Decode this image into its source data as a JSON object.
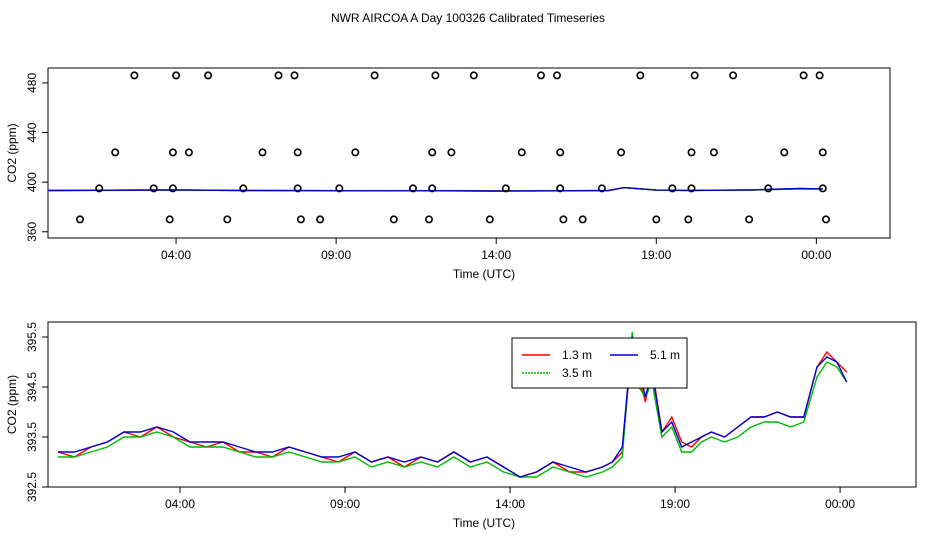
{
  "title": "NWR AIRCOA A  Day 100326  Calibrated Timeseries",
  "colors": {
    "red": "#ff0000",
    "green": "#00bb00",
    "blue": "#0000cc",
    "axis": "#000000",
    "background": "#ffffff"
  },
  "chart_data": [
    {
      "type": "scatter",
      "title": "",
      "xlabel": "Time (UTC)",
      "ylabel": "CO2 (ppm)",
      "xlim": [
        0,
        26.3
      ],
      "ylim": [
        355,
        492
      ],
      "xticks": [
        {
          "value": 4,
          "label": "04:00"
        },
        {
          "value": 9,
          "label": "09:00"
        },
        {
          "value": 14,
          "label": "14:00"
        },
        {
          "value": 19,
          "label": "19:00"
        },
        {
          "value": 24,
          "label": "00:00"
        }
      ],
      "yticks": [
        360,
        400,
        440,
        480
      ],
      "points": [
        [
          1.0,
          370
        ],
        [
          1.6,
          395
        ],
        [
          2.1,
          424
        ],
        [
          2.7,
          486
        ],
        [
          3.3,
          395
        ],
        [
          3.8,
          370
        ],
        [
          3.9,
          395
        ],
        [
          3.9,
          424
        ],
        [
          4.0,
          486
        ],
        [
          4.4,
          424
        ],
        [
          5.0,
          486
        ],
        [
          5.6,
          370
        ],
        [
          6.1,
          395
        ],
        [
          6.7,
          424
        ],
        [
          7.2,
          486
        ],
        [
          7.7,
          486
        ],
        [
          7.8,
          424
        ],
        [
          7.8,
          395
        ],
        [
          7.9,
          370
        ],
        [
          8.5,
          370
        ],
        [
          9.1,
          395
        ],
        [
          9.6,
          424
        ],
        [
          10.2,
          486
        ],
        [
          10.8,
          370
        ],
        [
          11.4,
          395
        ],
        [
          11.9,
          370
        ],
        [
          12.0,
          395
        ],
        [
          12.0,
          424
        ],
        [
          12.1,
          486
        ],
        [
          12.6,
          424
        ],
        [
          13.3,
          486
        ],
        [
          13.8,
          370
        ],
        [
          14.3,
          395
        ],
        [
          14.8,
          424
        ],
        [
          15.4,
          486
        ],
        [
          15.9,
          486
        ],
        [
          16.0,
          424
        ],
        [
          16.0,
          395
        ],
        [
          16.1,
          370
        ],
        [
          16.7,
          370
        ],
        [
          17.3,
          395
        ],
        [
          17.9,
          424
        ],
        [
          18.5,
          486
        ],
        [
          19.0,
          370
        ],
        [
          19.5,
          395
        ],
        [
          20.0,
          370
        ],
        [
          20.1,
          395
        ],
        [
          20.1,
          424
        ],
        [
          20.2,
          486
        ],
        [
          20.8,
          424
        ],
        [
          21.4,
          486
        ],
        [
          21.9,
          370
        ],
        [
          22.5,
          395
        ],
        [
          23.0,
          424
        ],
        [
          23.6,
          486
        ],
        [
          24.1,
          486
        ],
        [
          24.2,
          424
        ],
        [
          24.2,
          395
        ],
        [
          24.3,
          370
        ]
      ],
      "series": [
        {
          "name": "1.3 m",
          "color": "#ff0000",
          "x": [
            0,
            2,
            4,
            6,
            8,
            10,
            12,
            14,
            16,
            17.5,
            18,
            19,
            20,
            22,
            23.5,
            24.2
          ],
          "y": [
            393.3,
            393.5,
            393.8,
            393.3,
            393.2,
            393.0,
            393.1,
            392.9,
            393.0,
            393.3,
            395.5,
            393.6,
            393.4,
            393.8,
            394.8,
            394.6
          ]
        },
        {
          "name": "3.5 m",
          "color": "#00bb00",
          "x": [
            0,
            2,
            4,
            6,
            8,
            10,
            12,
            14,
            16,
            17.5,
            18,
            19,
            20,
            22,
            23.5,
            24.2
          ],
          "y": [
            393.2,
            393.4,
            393.7,
            393.3,
            393.1,
            393.0,
            393.0,
            392.8,
            393.0,
            393.2,
            395.6,
            393.5,
            393.3,
            393.7,
            394.6,
            394.5
          ]
        },
        {
          "name": "5.1 m",
          "color": "#0000cc",
          "x": [
            0,
            2,
            4,
            6,
            8,
            10,
            12,
            14,
            16,
            17.5,
            18,
            19,
            20,
            22,
            23.5,
            24.2
          ],
          "y": [
            393.3,
            393.5,
            393.8,
            393.4,
            393.2,
            393.0,
            393.1,
            392.9,
            393.0,
            393.3,
            395.6,
            393.6,
            393.4,
            393.8,
            394.9,
            394.6
          ]
        }
      ]
    },
    {
      "type": "line",
      "title": "",
      "xlabel": "Time (UTC)",
      "ylabel": "CO2 (ppm)",
      "xlim": [
        0,
        26.3
      ],
      "ylim": [
        392.5,
        395.8
      ],
      "xticks": [
        {
          "value": 4,
          "label": "04:00"
        },
        {
          "value": 9,
          "label": "09:00"
        },
        {
          "value": 14,
          "label": "14:00"
        },
        {
          "value": 19,
          "label": "19:00"
        },
        {
          "value": 24,
          "label": "00:00"
        }
      ],
      "yticks": [
        "392.5",
        "393.5",
        "394.5",
        "395.5"
      ],
      "legend_position": "top-center",
      "series": [
        {
          "name": "1.3 m",
          "color": "#ff0000",
          "x": [
            0.3,
            0.8,
            1.3,
            1.8,
            2.3,
            2.8,
            3.3,
            3.8,
            4.3,
            4.8,
            5.3,
            5.8,
            6.3,
            6.8,
            7.3,
            7.8,
            8.3,
            8.8,
            9.3,
            9.8,
            10.3,
            10.8,
            11.3,
            11.8,
            12.3,
            12.8,
            13.3,
            13.8,
            14.3,
            14.8,
            15.3,
            15.8,
            16.3,
            16.8,
            17.1,
            17.4,
            17.7,
            17.9,
            18.1,
            18.3,
            18.6,
            18.9,
            19.2,
            19.5,
            19.8,
            20.1,
            20.5,
            20.9,
            21.3,
            21.7,
            22.1,
            22.5,
            22.9,
            23.3,
            23.6,
            23.9,
            24.2
          ],
          "y": [
            393.2,
            393.1,
            393.3,
            393.4,
            393.6,
            393.5,
            393.7,
            393.5,
            393.4,
            393.3,
            393.4,
            393.2,
            393.2,
            393.1,
            393.3,
            393.2,
            393.1,
            393.0,
            393.2,
            393.0,
            393.1,
            392.9,
            393.1,
            393.0,
            393.2,
            393.0,
            393.1,
            392.9,
            392.7,
            392.8,
            393.0,
            392.8,
            392.8,
            392.9,
            393.0,
            393.2,
            395.4,
            394.7,
            394.2,
            394.9,
            393.6,
            393.9,
            393.4,
            393.3,
            393.5,
            393.6,
            393.5,
            393.7,
            393.9,
            393.9,
            394.0,
            393.9,
            393.9,
            394.9,
            395.2,
            395.0,
            394.8
          ]
        },
        {
          "name": "3.5 m",
          "color": "#00bb00",
          "x": [
            0.3,
            0.8,
            1.3,
            1.8,
            2.3,
            2.8,
            3.3,
            3.8,
            4.3,
            4.8,
            5.3,
            5.8,
            6.3,
            6.8,
            7.3,
            7.8,
            8.3,
            8.8,
            9.3,
            9.8,
            10.3,
            10.8,
            11.3,
            11.8,
            12.3,
            12.8,
            13.3,
            13.8,
            14.3,
            14.8,
            15.3,
            15.8,
            16.3,
            16.8,
            17.1,
            17.4,
            17.7,
            17.9,
            18.1,
            18.3,
            18.6,
            18.9,
            19.2,
            19.5,
            19.8,
            20.1,
            20.5,
            20.9,
            21.3,
            21.7,
            22.1,
            22.5,
            22.9,
            23.3,
            23.6,
            23.9,
            24.2
          ],
          "y": [
            393.1,
            393.1,
            393.2,
            393.3,
            393.5,
            393.5,
            393.6,
            393.5,
            393.3,
            393.3,
            393.3,
            393.2,
            393.1,
            393.1,
            393.2,
            393.1,
            393.0,
            393.0,
            393.1,
            392.9,
            393.0,
            392.9,
            393.0,
            392.9,
            393.1,
            392.9,
            393.0,
            392.8,
            392.7,
            392.7,
            392.9,
            392.8,
            392.7,
            392.8,
            392.9,
            393.1,
            395.6,
            394.5,
            394.3,
            394.6,
            393.5,
            393.7,
            393.2,
            393.2,
            393.4,
            393.5,
            393.4,
            393.5,
            393.7,
            393.8,
            393.8,
            393.7,
            393.8,
            394.7,
            395.0,
            394.9,
            394.6
          ]
        },
        {
          "name": "5.1 m",
          "color": "#0000cc",
          "x": [
            0.3,
            0.8,
            1.3,
            1.8,
            2.3,
            2.8,
            3.3,
            3.8,
            4.3,
            4.8,
            5.3,
            5.8,
            6.3,
            6.8,
            7.3,
            7.8,
            8.3,
            8.8,
            9.3,
            9.8,
            10.3,
            10.8,
            11.3,
            11.8,
            12.3,
            12.8,
            13.3,
            13.8,
            14.3,
            14.8,
            15.3,
            15.8,
            16.3,
            16.8,
            17.1,
            17.4,
            17.7,
            17.9,
            18.1,
            18.3,
            18.6,
            18.9,
            19.2,
            19.5,
            19.8,
            20.1,
            20.5,
            20.9,
            21.3,
            21.7,
            22.1,
            22.5,
            22.9,
            23.3,
            23.6,
            23.9,
            24.2
          ],
          "y": [
            393.2,
            393.2,
            393.3,
            393.4,
            393.6,
            393.6,
            393.7,
            393.6,
            393.4,
            393.4,
            393.4,
            393.3,
            393.2,
            393.2,
            393.3,
            393.2,
            393.1,
            393.1,
            393.2,
            393.0,
            393.1,
            393.0,
            393.1,
            393.0,
            393.2,
            393.0,
            393.1,
            392.9,
            392.7,
            392.8,
            393.0,
            392.9,
            392.8,
            392.9,
            393.0,
            393.3,
            395.5,
            394.9,
            394.3,
            394.8,
            393.6,
            393.8,
            393.3,
            393.4,
            393.5,
            393.6,
            393.5,
            393.7,
            393.9,
            393.9,
            394.0,
            393.9,
            393.9,
            394.9,
            395.1,
            395.0,
            394.6
          ]
        }
      ]
    }
  ]
}
